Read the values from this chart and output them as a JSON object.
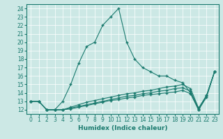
{
  "xlabel": "Humidex (Indice chaleur)",
  "bg_color": "#cce8e5",
  "grid_color": "#b0d5d0",
  "line_color": "#1a7a6e",
  "xlim": [
    -0.5,
    23.5
  ],
  "ylim": [
    11.5,
    24.5
  ],
  "yticks": [
    12,
    13,
    14,
    15,
    16,
    17,
    18,
    19,
    20,
    21,
    22,
    23,
    24
  ],
  "xticks": [
    0,
    1,
    2,
    3,
    4,
    5,
    6,
    7,
    8,
    9,
    10,
    11,
    12,
    13,
    14,
    15,
    16,
    17,
    18,
    19,
    20,
    21,
    22,
    23
  ],
  "series": [
    {
      "x": [
        0,
        1,
        2,
        3,
        4,
        5,
        6,
        7,
        8,
        9,
        10,
        11,
        12,
        13,
        14,
        15,
        16,
        17,
        18,
        19,
        20,
        21,
        22,
        23
      ],
      "y": [
        13,
        13,
        12,
        12,
        13,
        15,
        17.5,
        19.5,
        20,
        22,
        23,
        24,
        20,
        18,
        17,
        16.5,
        16,
        16,
        15.5,
        15.2,
        14,
        12,
        13.5,
        16.5
      ]
    },
    {
      "x": [
        0,
        1,
        2,
        3,
        4,
        5,
        6,
        7,
        8,
        9,
        10,
        11,
        12,
        13,
        14,
        15,
        16,
        17,
        18,
        19,
        20,
        21,
        22,
        23
      ],
      "y": [
        13,
        13,
        12,
        12,
        12,
        12.3,
        12.6,
        12.9,
        13.1,
        13.3,
        13.5,
        13.7,
        13.9,
        14.0,
        14.2,
        14.3,
        14.5,
        14.7,
        14.8,
        15.0,
        14.5,
        12.2,
        13.7,
        16.5
      ]
    },
    {
      "x": [
        0,
        1,
        2,
        3,
        4,
        5,
        6,
        7,
        8,
        9,
        10,
        11,
        12,
        13,
        14,
        15,
        16,
        17,
        18,
        19,
        20,
        21,
        22,
        23
      ],
      "y": [
        13,
        13,
        12,
        12,
        12,
        12.2,
        12.4,
        12.6,
        12.8,
        13.0,
        13.2,
        13.4,
        13.6,
        13.7,
        13.9,
        14.0,
        14.2,
        14.3,
        14.5,
        14.6,
        14.2,
        12.1,
        13.7,
        16.5
      ]
    },
    {
      "x": [
        0,
        1,
        2,
        3,
        4,
        5,
        6,
        7,
        8,
        9,
        10,
        11,
        12,
        13,
        14,
        15,
        16,
        17,
        18,
        19,
        20,
        21,
        22,
        23
      ],
      "y": [
        13,
        13,
        12,
        12,
        12,
        12.1,
        12.3,
        12.5,
        12.7,
        12.9,
        13.1,
        13.2,
        13.4,
        13.5,
        13.7,
        13.8,
        13.9,
        14.0,
        14.1,
        14.3,
        13.9,
        12.0,
        13.6,
        16.5
      ]
    }
  ]
}
